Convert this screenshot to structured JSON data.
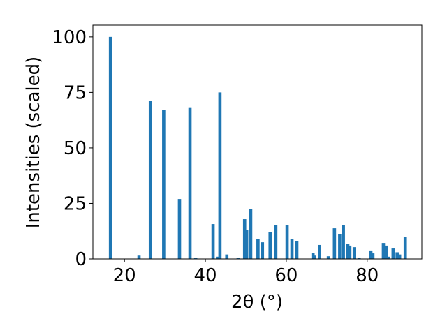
{
  "chart_data": {
    "type": "bar",
    "xlabel": "2θ (°)",
    "ylabel": "Intensities (scaled)",
    "x": [
      16.55,
      23.6,
      26.4,
      29.7,
      33.6,
      36.2,
      37.6,
      41.9,
      43.0,
      43.6,
      45.3,
      48.1,
      49.7,
      50.2,
      51.2,
      53.0,
      54.1,
      56.0,
      57.4,
      60.2,
      61.4,
      62.6,
      66.6,
      66.9,
      68.2,
      70.4,
      71.9,
      73.2,
      74.1,
      75.2,
      75.7,
      76.8,
      78.0,
      80.9,
      81.4,
      84.0,
      84.7,
      85.2,
      86.4,
      87.4,
      88.0,
      89.4
    ],
    "values": [
      100,
      1.5,
      71.2,
      67,
      27,
      68,
      0.5,
      15.7,
      1,
      75,
      2,
      0.5,
      17.9,
      13,
      22.6,
      9,
      7.5,
      12,
      15.4,
      15.4,
      9,
      7.9,
      2.8,
      1.5,
      6.3,
      1.2,
      13.8,
      11.3,
      15.1,
      6.9,
      6,
      5.3,
      0.5,
      3.8,
      2.5,
      7.2,
      6,
      1,
      4.7,
      3,
      2,
      10
    ],
    "color": "#1f77b4",
    "xlim": [
      12.2,
      93.5
    ],
    "ylim": [
      0,
      105.3
    ],
    "xticks": [
      20,
      40,
      60,
      80
    ],
    "yticks": [
      0,
      25,
      50,
      75,
      100
    ]
  }
}
